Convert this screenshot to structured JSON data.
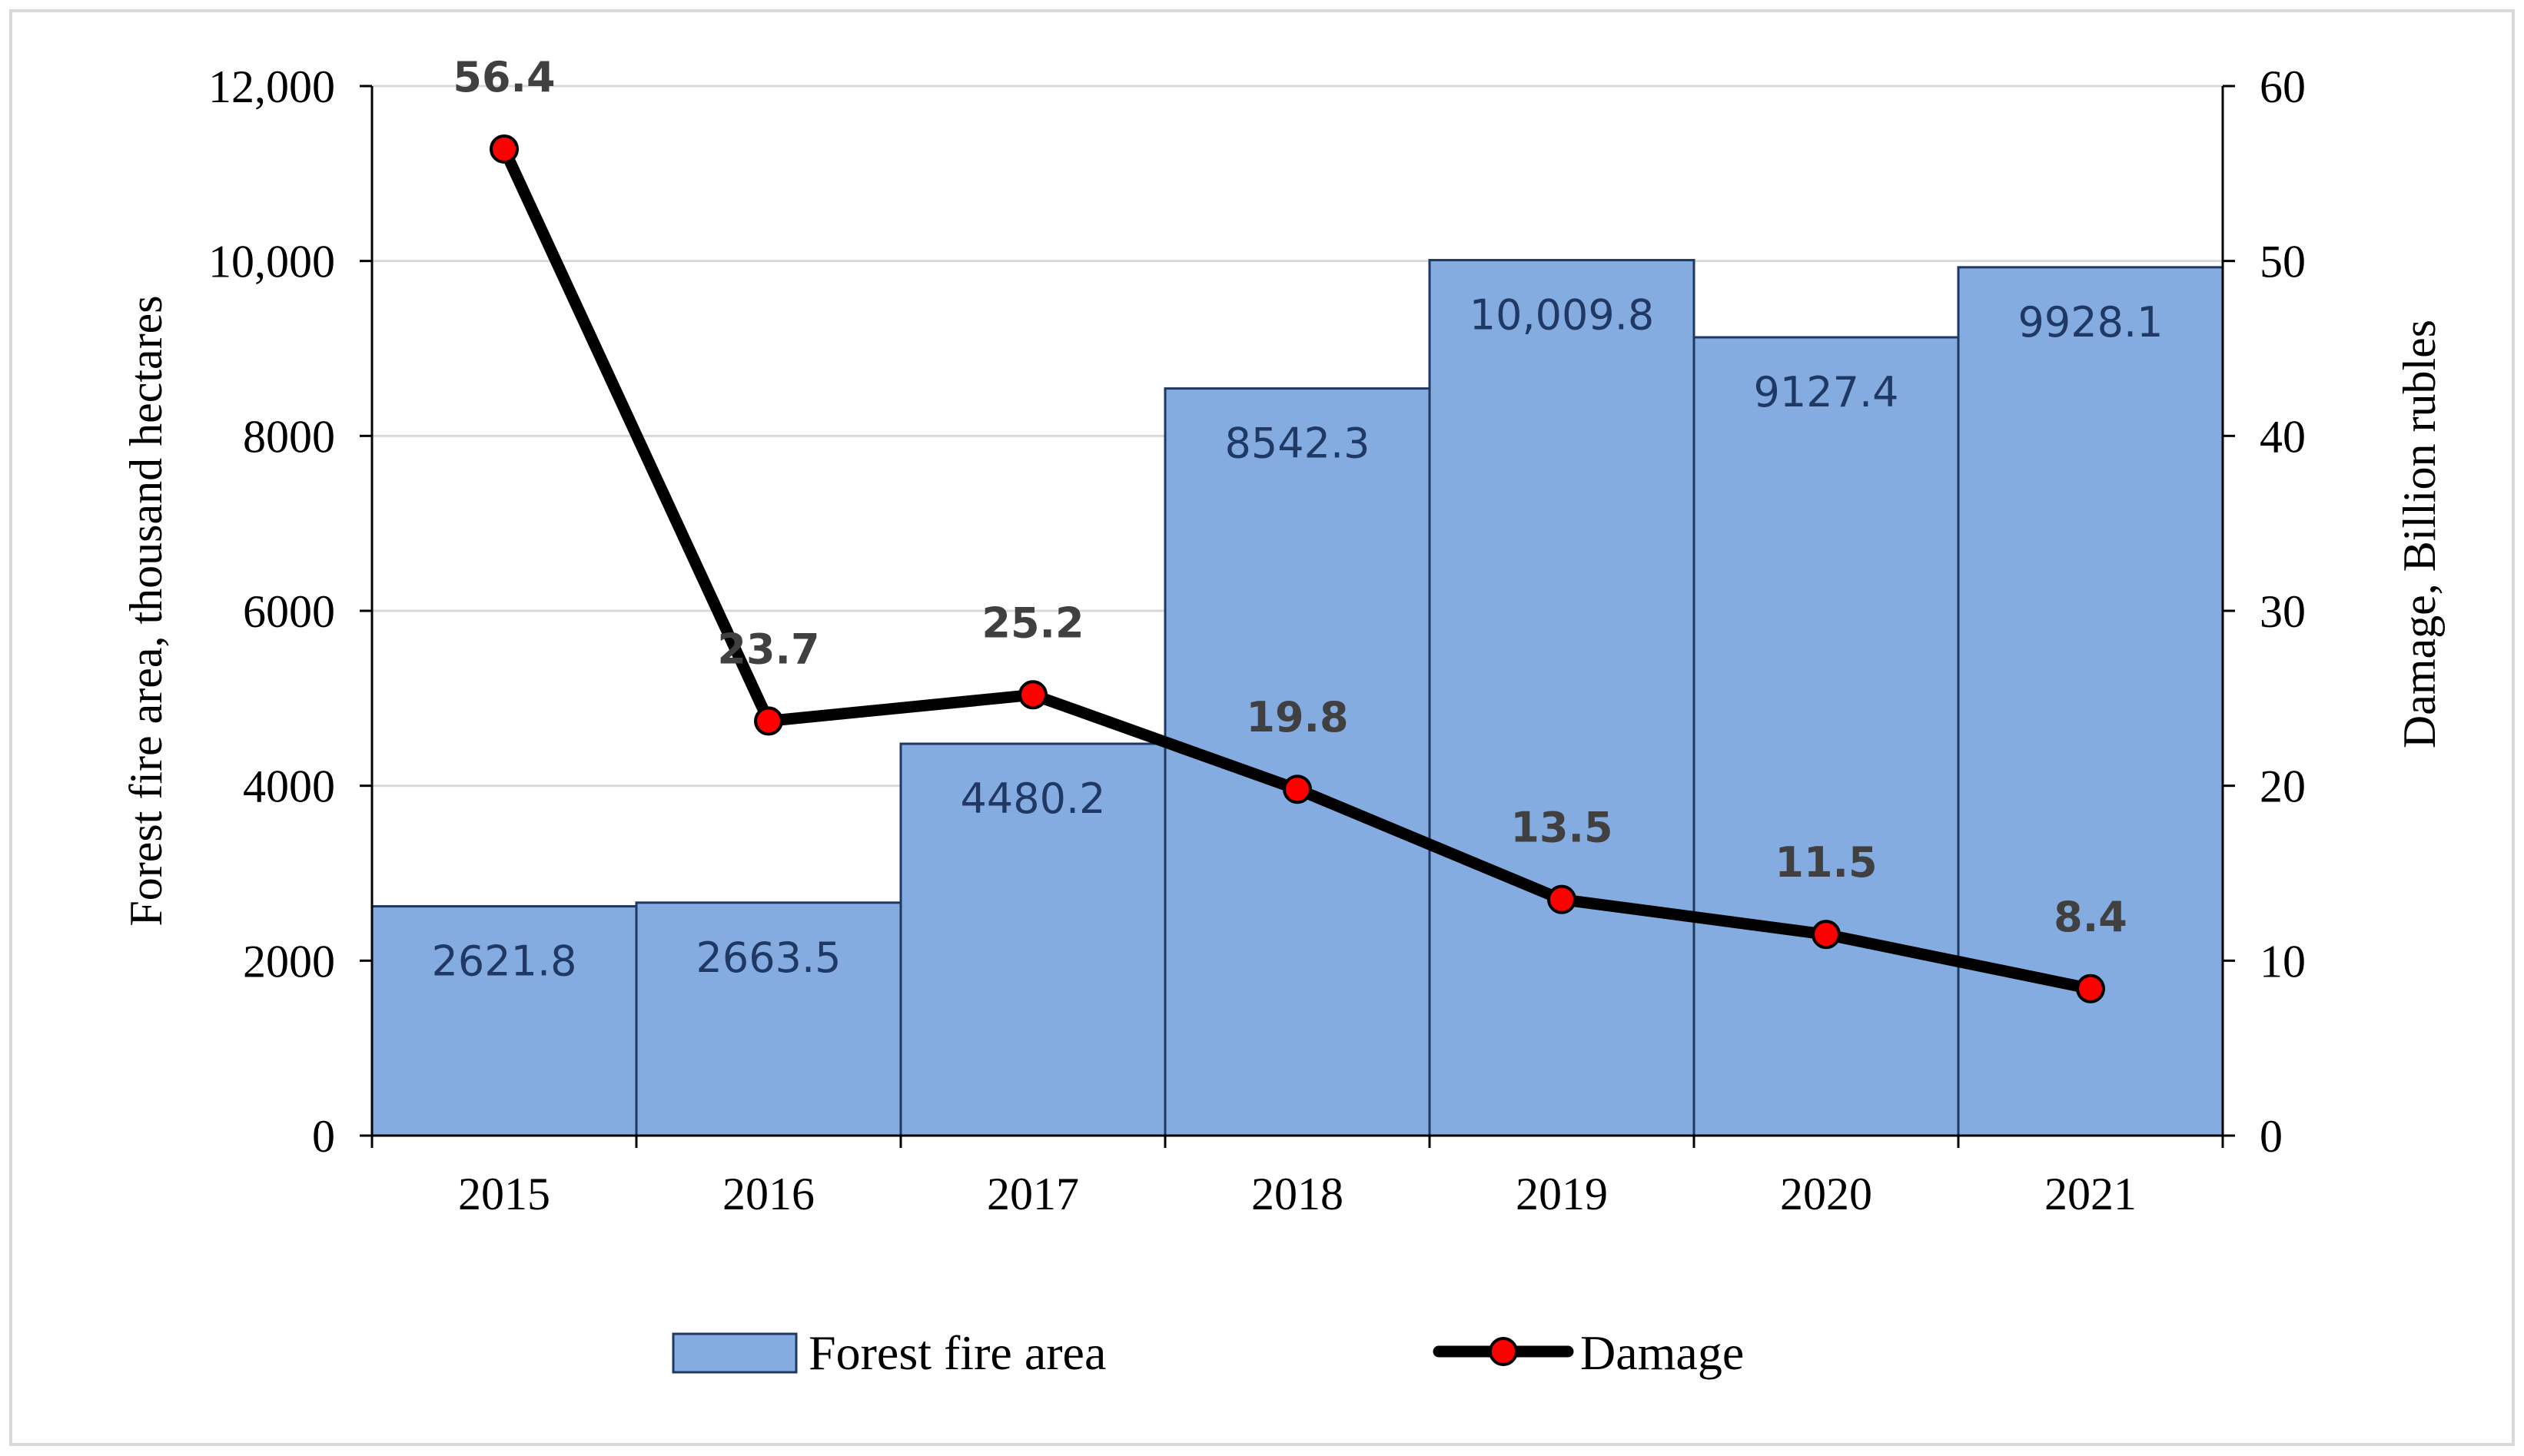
{
  "chart_data": {
    "type": "bar+line",
    "categories": [
      "2015",
      "2016",
      "2017",
      "2018",
      "2019",
      "2020",
      "2021"
    ],
    "series": [
      {
        "name": "Forest fire area",
        "type": "bar",
        "axis": "left",
        "values": [
          2621.8,
          2663.5,
          4480.2,
          8542.3,
          10009.8,
          9127.4,
          9928.1
        ],
        "labels": [
          "2621.8",
          "2663.5",
          "4480.2",
          "8542.3",
          "10,009.8",
          "9127.4",
          "9928.1"
        ],
        "color": "#84ace0"
      },
      {
        "name": "Damage",
        "type": "line",
        "axis": "right",
        "values": [
          56.4,
          23.7,
          25.2,
          19.8,
          13.5,
          11.5,
          8.4
        ],
        "labels": [
          "56.4",
          "23.7",
          "25.2",
          "19.8",
          "13.5",
          "11.5",
          "8.4"
        ],
        "line_color": "#000000",
        "marker_color": "#ff0000"
      }
    ],
    "y_left": {
      "label": "Forest fire area, thousand hectares",
      "lim": [
        0,
        12000
      ],
      "ticks": [
        0,
        2000,
        4000,
        6000,
        8000,
        10000,
        12000
      ],
      "tick_labels": [
        "0",
        "2000",
        "4000",
        "6000",
        "8000",
        "10,000",
        "12,000"
      ]
    },
    "y_right": {
      "label": "Damage, Billion rubles",
      "lim": [
        0,
        60
      ],
      "ticks": [
        0,
        10,
        20,
        30,
        40,
        50,
        60
      ],
      "tick_labels": [
        "0",
        "10",
        "20",
        "30",
        "40",
        "50",
        "60"
      ]
    },
    "grid": true,
    "legend": {
      "position": "bottom",
      "entries": [
        "Forest fire area",
        "Damage"
      ]
    }
  }
}
